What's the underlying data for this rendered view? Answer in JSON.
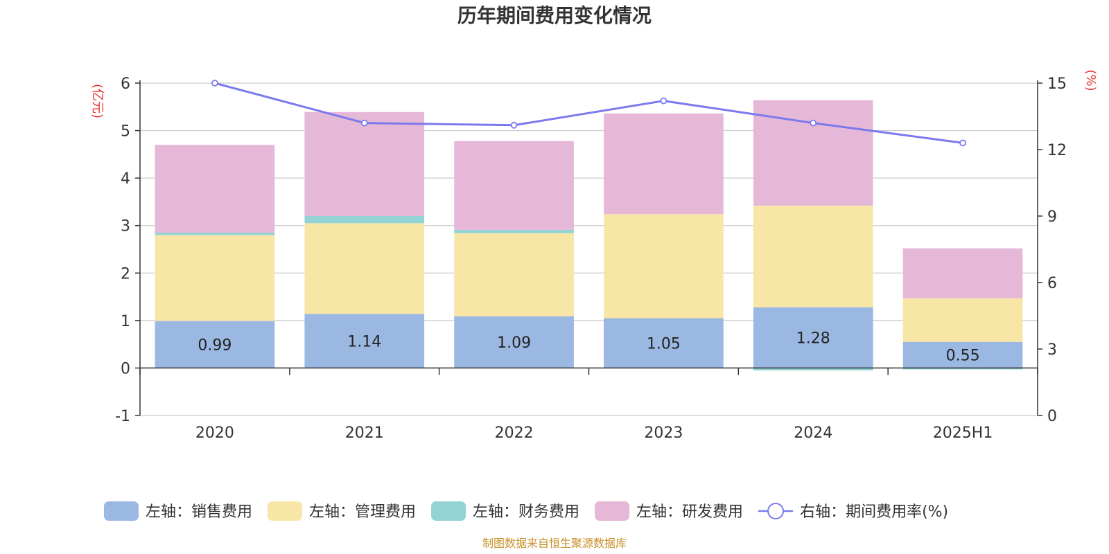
{
  "chart_data": {
    "type": "bar",
    "title": "历年期间费用变化情况",
    "left_axis_unit": "(亿元)",
    "right_axis_unit": "(%)",
    "categories": [
      "2020",
      "2021",
      "2022",
      "2023",
      "2024",
      "2025H1"
    ],
    "ylim": [
      -1,
      6
    ],
    "y_ticks": [
      -1,
      0,
      1,
      2,
      3,
      4,
      5,
      6
    ],
    "y2lim": [
      0,
      15
    ],
    "y2_ticks": [
      0,
      3,
      6,
      9,
      12,
      15
    ],
    "grid": true,
    "legend_position": "bottom",
    "series": [
      {
        "name": "左轴：销售费用",
        "type": "bar",
        "axis": "left",
        "color": "#9bb8e2",
        "values": [
          0.99,
          1.14,
          1.09,
          1.05,
          1.28,
          0.55
        ],
        "labels": [
          "0.99",
          "1.14",
          "1.09",
          "1.05",
          "1.28",
          "0.55"
        ]
      },
      {
        "name": "左轴：管理费用",
        "type": "bar",
        "axis": "left",
        "color": "#f7e6a6",
        "values": [
          1.81,
          1.91,
          1.75,
          2.19,
          2.14,
          0.92
        ]
      },
      {
        "name": "左轴：财务费用",
        "type": "bar",
        "axis": "left",
        "color": "#93d3d3",
        "values": [
          0.05,
          0.15,
          0.07,
          -0.01,
          -0.05,
          -0.03
        ]
      },
      {
        "name": "左轴：研发费用",
        "type": "bar",
        "axis": "left",
        "color": "#e6b8d8",
        "values": [
          1.85,
          2.19,
          1.87,
          2.12,
          2.22,
          1.05
        ]
      },
      {
        "name": "右轴：期间费用率(%)",
        "type": "line",
        "axis": "right",
        "color": "#7a7aee",
        "values": [
          15.0,
          13.2,
          13.1,
          14.2,
          13.2,
          12.3
        ]
      }
    ],
    "source": "制图数据来自恒生聚源数据库"
  }
}
